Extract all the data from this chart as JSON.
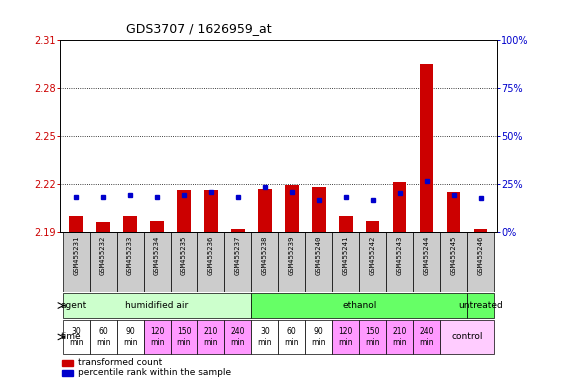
{
  "title": "GDS3707 / 1626959_at",
  "samples": [
    "GSM455231",
    "GSM455232",
    "GSM455233",
    "GSM455234",
    "GSM455235",
    "GSM455236",
    "GSM455237",
    "GSM455238",
    "GSM455239",
    "GSM455240",
    "GSM455241",
    "GSM455242",
    "GSM455243",
    "GSM455244",
    "GSM455245",
    "GSM455246"
  ],
  "red_values": [
    2.2,
    2.196,
    2.2,
    2.197,
    2.216,
    2.216,
    2.192,
    2.217,
    2.219,
    2.218,
    2.2,
    2.197,
    2.221,
    2.295,
    2.215,
    2.192
  ],
  "blue_values": [
    2.212,
    2.212,
    2.213,
    2.212,
    2.213,
    2.215,
    2.212,
    2.218,
    2.215,
    2.21,
    2.212,
    2.21,
    2.214,
    2.222,
    2.213,
    2.211
  ],
  "ymin": 2.19,
  "ymax": 2.31,
  "yticks": [
    2.19,
    2.22,
    2.25,
    2.28,
    2.31
  ],
  "y_right_ticks": [
    0,
    25,
    50,
    75,
    100
  ],
  "y_right_labels": [
    "0%",
    "25%",
    "50%",
    "75%",
    "100%"
  ],
  "bar_color": "#cc0000",
  "dot_color": "#0000cc",
  "background_color": "#ffffff",
  "plot_bg": "#ffffff",
  "label_color_left": "#cc0000",
  "label_color_right": "#0000cc",
  "xlabel_samples_bg": "#cccccc",
  "agent_humidified_color": "#ccffcc",
  "agent_ethanol_color": "#66ff66",
  "agent_untreated_color": "#66ff66",
  "time_white": "#ffffff",
  "time_pink": "#ff99ff",
  "time_light_pink": "#ffccff"
}
